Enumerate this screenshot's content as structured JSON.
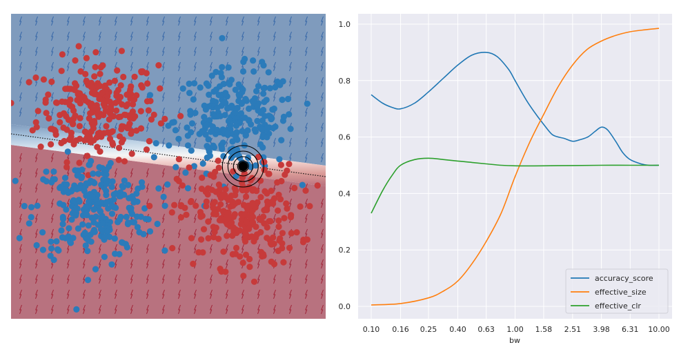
{
  "colors": {
    "blue_region": "#7f9bbd",
    "red_region": "#b8727f",
    "red_points": "#c73a3a",
    "blue_points": "#2b7bba",
    "arrow_blue": "#3566a8",
    "arrow_red": "#a02236",
    "axes_bg": "#eaeaf2",
    "series_1": "#1f77b4",
    "series_2": "#ff7f0e",
    "series_3": "#2ca02c"
  },
  "chart_data": [
    {
      "type": "scatter",
      "title": "",
      "description_free": true,
      "clusters": [
        {
          "class": "red",
          "center": [
            -0.9,
            0.75
          ],
          "n": 250
        },
        {
          "class": "blue",
          "center": [
            0.85,
            0.6
          ],
          "n": 250
        },
        {
          "class": "blue",
          "center": [
            -0.95,
            -0.55
          ],
          "n": 250
        },
        {
          "class": "red",
          "center": [
            0.9,
            -0.65
          ],
          "n": 250
        }
      ],
      "highlight_point": [
        0.95,
        0.0
      ],
      "decision_boundary": {
        "slope": -0.3,
        "intercept": 0.08
      },
      "xlim": [
        -2.0,
        2.0
      ],
      "ylim": [
        -2.0,
        2.0
      ]
    },
    {
      "type": "line",
      "title": "",
      "xlabel": "bw",
      "ylabel": "",
      "x_scale": "log",
      "xlim": [
        0.1,
        10.0
      ],
      "ylim": [
        0.0,
        1.0
      ],
      "x_tick_labels": [
        "0.10",
        "0.16",
        "0.25",
        "0.40",
        "0.63",
        "1.00",
        "1.58",
        "2.51",
        "3.98",
        "6.31",
        "10.00"
      ],
      "y_tick_labels": [
        "0.0",
        "0.2",
        "0.4",
        "0.6",
        "0.8",
        "1.0"
      ],
      "grid": true,
      "legend_position": "bottom-right",
      "series": [
        {
          "name": "accuracy_score",
          "x": [
            0.1,
            0.12,
            0.14,
            0.16,
            0.2,
            0.25,
            0.32,
            0.4,
            0.5,
            0.63,
            0.75,
            0.9,
            1.0,
            1.2,
            1.4,
            1.58,
            1.8,
            2.0,
            2.2,
            2.51,
            2.8,
            3.2,
            3.6,
            3.98,
            4.4,
            5.0,
            5.6,
            6.31,
            7.5,
            8.5,
            10.0
          ],
          "y": [
            0.75,
            0.72,
            0.705,
            0.7,
            0.72,
            0.76,
            0.81,
            0.855,
            0.89,
            0.9,
            0.885,
            0.84,
            0.8,
            0.73,
            0.68,
            0.645,
            0.61,
            0.6,
            0.595,
            0.585,
            0.59,
            0.6,
            0.62,
            0.635,
            0.625,
            0.585,
            0.545,
            0.52,
            0.505,
            0.5,
            0.5
          ]
        },
        {
          "name": "effective_size",
          "x": [
            0.1,
            0.16,
            0.25,
            0.32,
            0.4,
            0.5,
            0.63,
            0.8,
            1.0,
            1.26,
            1.58,
            2.0,
            2.51,
            3.16,
            3.98,
            5.0,
            6.31,
            8.0,
            10.0
          ],
          "y": [
            0.005,
            0.01,
            0.03,
            0.055,
            0.09,
            0.15,
            0.23,
            0.33,
            0.46,
            0.58,
            0.68,
            0.78,
            0.855,
            0.91,
            0.94,
            0.96,
            0.973,
            0.98,
            0.985
          ]
        },
        {
          "name": "effective_clr",
          "x": [
            0.1,
            0.12,
            0.14,
            0.16,
            0.2,
            0.25,
            0.32,
            0.4,
            0.5,
            0.63,
            0.8,
            1.0,
            1.58,
            2.51,
            3.98,
            6.31,
            10.0
          ],
          "y": [
            0.33,
            0.41,
            0.465,
            0.5,
            0.52,
            0.525,
            0.52,
            0.515,
            0.51,
            0.505,
            0.5,
            0.498,
            0.498,
            0.499,
            0.5,
            0.5,
            0.5
          ]
        }
      ]
    }
  ]
}
